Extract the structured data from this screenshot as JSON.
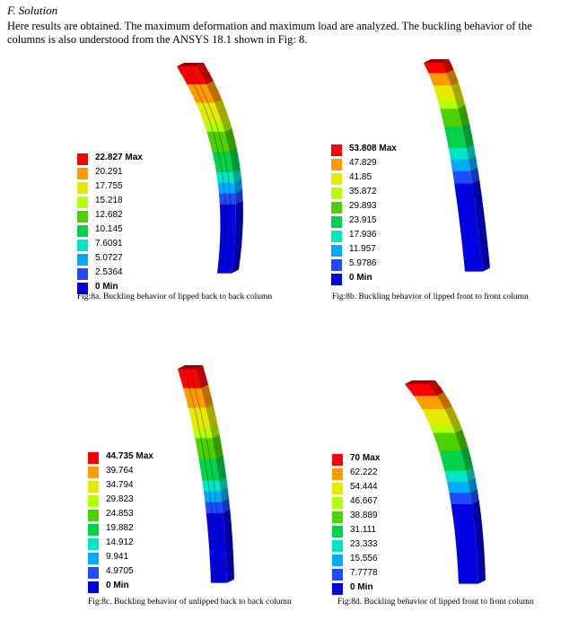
{
  "section": {
    "heading": "F.  Solution"
  },
  "paragraph": "Here results are obtained. The maximum deformation and maximum load are analyzed. The buckling behavior of the columns is also understood from the ANSYS 18.1 shown in Fig: 8.",
  "palette": [
    "#ff0000",
    "#ff9b00",
    "#e6ea00",
    "#b4ff00",
    "#4bd200",
    "#00d24b",
    "#00e6c8",
    "#00aaff",
    "#1e4bff",
    "#0000e1"
  ],
  "figures": [
    {
      "id": "8a",
      "caption": "Fig:8a. Buckling behavior of lipped back to back column",
      "legend": [
        "22.827 Max",
        "20.291",
        "17.755",
        "15.218",
        "12.682",
        "10.145",
        "7.6091",
        "5.0727",
        "2.5364",
        "0 Min"
      ]
    },
    {
      "id": "8b",
      "caption": "Fig:8b. Buckling behavior of lipped front to front column",
      "legend": [
        "53.808 Max",
        "47.829",
        "41.85",
        "35.872",
        "29.893",
        "23.915",
        "17.936",
        "11.957",
        "5.9786",
        "0 Min"
      ]
    },
    {
      "id": "8c",
      "caption": "Fig:8c. Buckling behavior of unlipped back to back column",
      "legend": [
        "44.735 Max",
        "39.764",
        "34.794",
        "29.823",
        "24.853",
        "19.882",
        "14.912",
        "9.941",
        "4.9705",
        "0 Min"
      ]
    },
    {
      "id": "8d",
      "caption": "Fig:8d. Buckling behavior of lipped front to front column",
      "legend": [
        "70 Max",
        "62.222",
        "54.444",
        "46.667",
        "38.889",
        "31.111",
        "23.333",
        "15.556",
        "7.7778",
        "0 Min"
      ]
    }
  ]
}
